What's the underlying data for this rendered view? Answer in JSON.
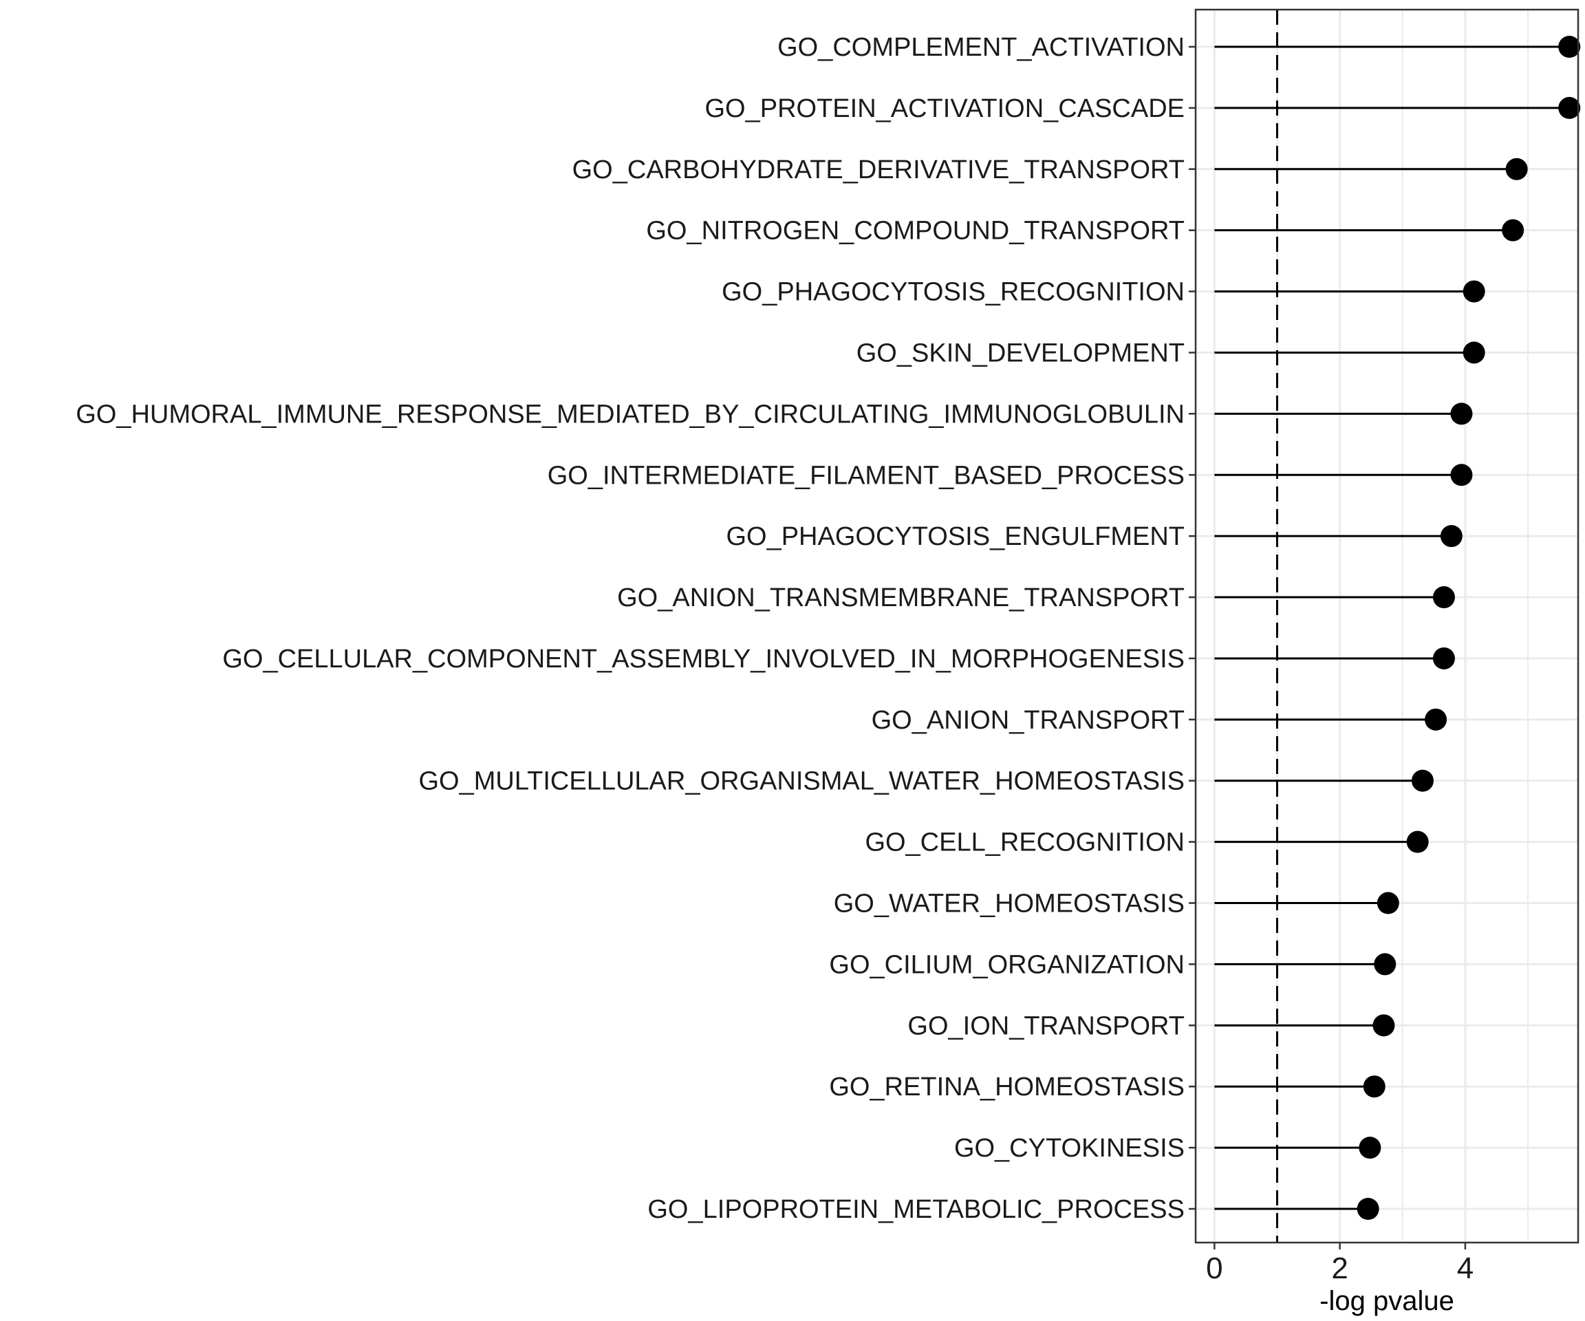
{
  "chart_data": {
    "type": "lollipop",
    "title": "",
    "xlabel": "-log pvalue",
    "ylabel": "",
    "xlim": [
      -0.3,
      5.8
    ],
    "xticks": [
      0,
      2,
      4
    ],
    "xtick_labels": [
      "0",
      "2",
      "4"
    ],
    "reference_line": 1,
    "grid": true,
    "colors": {
      "point": "#000000",
      "stem": "#000000",
      "grid": "#ebebeb",
      "border": "#333333"
    },
    "categories": [
      "GO_COMPLEMENT_ACTIVATION",
      "GO_PROTEIN_ACTIVATION_CASCADE",
      "GO_CARBOHYDRATE_DERIVATIVE_TRANSPORT",
      "GO_NITROGEN_COMPOUND_TRANSPORT",
      "GO_PHAGOCYTOSIS_RECOGNITION",
      "GO_SKIN_DEVELOPMENT",
      "GO_HUMORAL_IMMUNE_RESPONSE_MEDIATED_BY_CIRCULATING_IMMUNOGLOBULIN",
      "GO_INTERMEDIATE_FILAMENT_BASED_PROCESS",
      "GO_PHAGOCYTOSIS_ENGULFMENT",
      "GO_ANION_TRANSMEMBRANE_TRANSPORT",
      "GO_CELLULAR_COMPONENT_ASSEMBLY_INVOLVED_IN_MORPHOGENESIS",
      "GO_ANION_TRANSPORT",
      "GO_MULTICELLULAR_ORGANISMAL_WATER_HOMEOSTASIS",
      "GO_CELL_RECOGNITION",
      "GO_WATER_HOMEOSTASIS",
      "GO_CILIUM_ORGANIZATION",
      "GO_ION_TRANSPORT",
      "GO_RETINA_HOMEOSTASIS",
      "GO_CYTOKINESIS",
      "GO_LIPOPROTEIN_METABOLIC_PROCESS"
    ],
    "values": [
      5.66,
      5.66,
      4.82,
      4.76,
      4.14,
      4.14,
      3.94,
      3.94,
      3.78,
      3.66,
      3.66,
      3.53,
      3.32,
      3.24,
      2.77,
      2.72,
      2.7,
      2.55,
      2.48,
      2.45
    ]
  }
}
